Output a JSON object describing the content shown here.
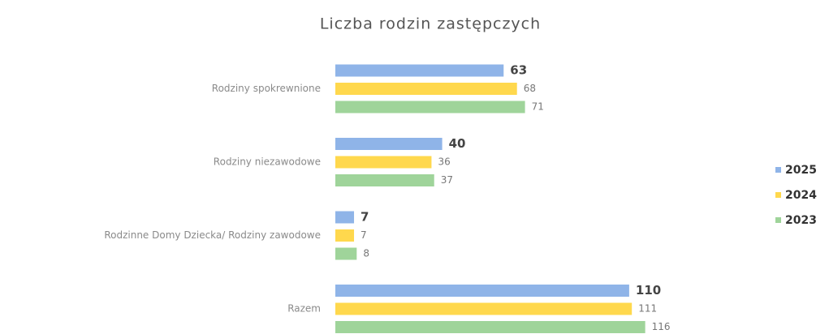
{
  "chart_data": {
    "type": "bar",
    "orientation": "horizontal",
    "title": "Liczba rodzin zastępczych",
    "categories": [
      "Rodziny spokrewnione",
      "Rodziny niezawodowe",
      "Rodzinne Domy Dziecka/ Rodziny zawodowe",
      "Razem"
    ],
    "series": [
      {
        "name": "2025",
        "color": "#8fb4e8",
        "values": [
          63,
          40,
          7,
          110
        ]
      },
      {
        "name": "2024",
        "color": "#ffd84d",
        "values": [
          68,
          36,
          7,
          111
        ]
      },
      {
        "name": "2023",
        "color": "#9fd49a",
        "values": [
          71,
          37,
          8,
          116
        ]
      }
    ],
    "legend": "right"
  }
}
